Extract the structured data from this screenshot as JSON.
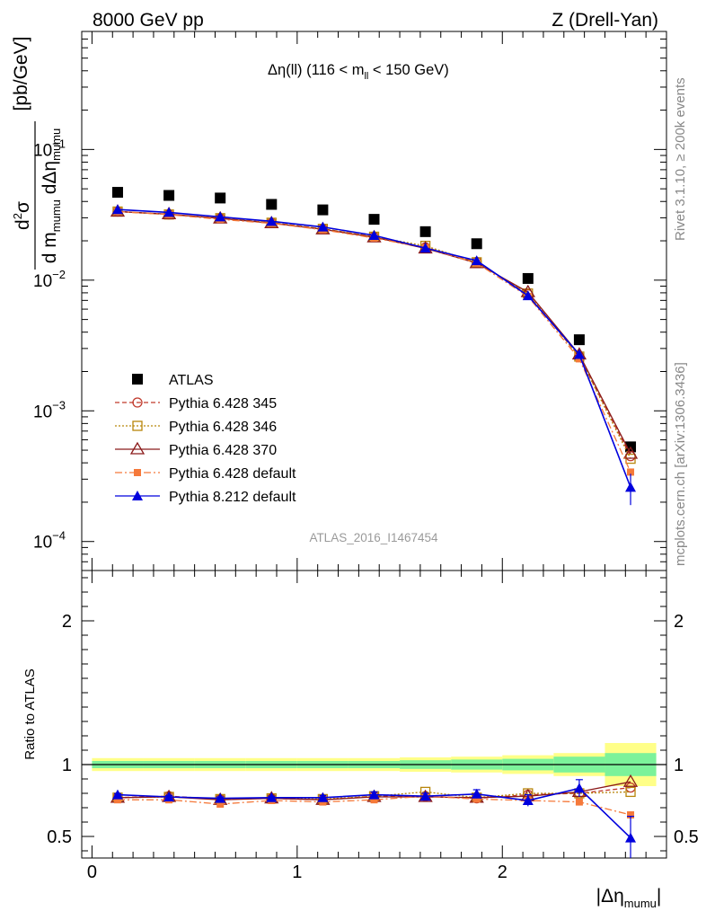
{
  "header": {
    "left": "8000 GeV pp",
    "right": "Z (Drell-Yan)"
  },
  "side_labels": {
    "rivet": "Rivet 3.1.10, ≥ 200k events",
    "mcplots": "mcplots.cern.ch [arXiv:1306.3436]"
  },
  "analysis_id": "ATLAS_2016_I1467454",
  "colors": {
    "atlas": "#000000",
    "p345": "#c0392b",
    "p346": "#b8860b",
    "p370": "#8b1a1a",
    "p6def": "#f5793a",
    "p8def": "#0000dd",
    "band_inner": "#7cf29a",
    "band_outer": "#ffff88"
  },
  "chart_data": [
    {
      "type": "scatter",
      "panel": "main",
      "title": "Δη(ll) (116 < m_ll < 150 GeV)",
      "title_parts": {
        "main": "Δη(ll) (116 < m",
        "sub": "ll",
        "tail": " < 150 GeV)"
      },
      "ylabel": "d²σ / d m_mumu dΔη_mumu [pb/GeV]",
      "ylabel_parts": {
        "num_d": "d",
        "num_sup": "2",
        "num_sigma": "σ",
        "den_a": "d m",
        "den_a_sub": "mumu",
        "den_b": " dΔη",
        "den_b_sub": "mumu",
        "unit": "[pb/GeV]"
      },
      "yscale": "log",
      "ylim": [
        6e-05,
        0.8
      ],
      "xlim": [
        -0.05,
        2.8
      ],
      "y_tick_labels": [
        {
          "value": 0.1,
          "base": "10",
          "exp": "−1"
        },
        {
          "value": 0.01,
          "base": "10",
          "exp": "−2"
        },
        {
          "value": 0.001,
          "base": "10",
          "exp": "−3"
        },
        {
          "value": 0.0001,
          "base": "10",
          "exp": "−4"
        }
      ],
      "x": [
        0.125,
        0.375,
        0.625,
        0.875,
        1.125,
        1.375,
        1.625,
        1.875,
        2.125,
        2.375,
        2.625
      ],
      "series": [
        {
          "name": "ATLAS",
          "key": "atlas",
          "marker": "square",
          "line": "none",
          "values": [
            0.047,
            0.0445,
            0.0425,
            0.038,
            0.0345,
            0.0292,
            0.0235,
            0.019,
            0.0103,
            0.0035,
            0.00053
          ]
        },
        {
          "name": "Pythia 6.428 345",
          "key": "p345",
          "marker": "circle-open",
          "line": "dashed",
          "values": [
            0.0335,
            0.0318,
            0.0298,
            0.0275,
            0.0247,
            0.0215,
            0.0178,
            0.0138,
            0.0078,
            0.0026,
            0.00045
          ]
        },
        {
          "name": "Pythia 6.428 346",
          "key": "p346",
          "marker": "square-open",
          "line": "dotted",
          "values": [
            0.0335,
            0.0318,
            0.0298,
            0.0275,
            0.0247,
            0.0215,
            0.0183,
            0.0137,
            0.0079,
            0.0026,
            0.00043
          ]
        },
        {
          "name": "Pythia 6.428 370",
          "key": "p370",
          "marker": "triangle-open",
          "line": "solid",
          "values": [
            0.0335,
            0.032,
            0.0297,
            0.0273,
            0.0245,
            0.0213,
            0.0175,
            0.0135,
            0.0081,
            0.0027,
            0.00047
          ]
        },
        {
          "name": "Pythia 6.428 default",
          "key": "p6def",
          "marker": "square-small",
          "line": "dashdot",
          "values": [
            0.0335,
            0.0317,
            0.0292,
            0.0272,
            0.0243,
            0.021,
            0.0177,
            0.0135,
            0.0075,
            0.0025,
            0.00034
          ]
        },
        {
          "name": "Pythia 8.212 default",
          "key": "p8def",
          "marker": "triangle",
          "line": "solid",
          "values": [
            0.0347,
            0.033,
            0.0305,
            0.0282,
            0.0255,
            0.022,
            0.0176,
            0.0141,
            0.0076,
            0.0027,
            0.00026
          ],
          "errors": [
            0,
            0,
            0,
            0,
            0,
            0,
            0,
            0,
            0,
            0.0002,
            7e-05
          ]
        }
      ]
    },
    {
      "type": "line",
      "panel": "ratio",
      "ylabel": "Ratio to ATLAS",
      "xlabel": "|Δη_mumu|",
      "xlabel_parts": {
        "main": "|Δη",
        "sub": "mumu",
        "tail": "|"
      },
      "ylim": [
        0.35,
        2.35
      ],
      "xlim": [
        -0.05,
        2.8
      ],
      "y_ticks": [
        0.5,
        1,
        2
      ],
      "y_tick_labels": [
        "0.5",
        "1",
        "2"
      ],
      "x_ticks": [
        0,
        1,
        2
      ],
      "x_tick_labels": [
        "0",
        "1",
        "2"
      ],
      "bins": [
        [
          0,
          0.25
        ],
        [
          0.25,
          0.5
        ],
        [
          0.5,
          0.75
        ],
        [
          0.75,
          1.0
        ],
        [
          1.0,
          1.25
        ],
        [
          1.25,
          1.5
        ],
        [
          1.5,
          1.75
        ],
        [
          1.75,
          2.0
        ],
        [
          2.0,
          2.25
        ],
        [
          2.25,
          2.5
        ],
        [
          2.5,
          2.75
        ]
      ],
      "band_inner": [
        0.025,
        0.025,
        0.025,
        0.025,
        0.025,
        0.025,
        0.03,
        0.035,
        0.04,
        0.055,
        0.08
      ],
      "band_outer": [
        0.045,
        0.045,
        0.045,
        0.045,
        0.045,
        0.045,
        0.05,
        0.055,
        0.065,
        0.08,
        0.15
      ],
      "x": [
        0.125,
        0.375,
        0.625,
        0.875,
        1.125,
        1.375,
        1.625,
        1.875,
        2.125,
        2.375,
        2.625
      ],
      "series": [
        {
          "name": "Pythia 6.428 345",
          "key": "p345",
          "values": [
            0.77,
            0.78,
            0.76,
            0.765,
            0.755,
            0.78,
            0.78,
            0.765,
            0.79,
            0.8,
            0.84
          ]
        },
        {
          "name": "Pythia 6.428 346",
          "key": "p346",
          "values": [
            0.77,
            0.775,
            0.76,
            0.765,
            0.76,
            0.78,
            0.81,
            0.77,
            0.8,
            0.8,
            0.81
          ]
        },
        {
          "name": "Pythia 6.428 370",
          "key": "p370",
          "values": [
            0.77,
            0.775,
            0.755,
            0.765,
            0.755,
            0.775,
            0.775,
            0.77,
            0.78,
            0.81,
            0.88
          ]
        },
        {
          "name": "Pythia 6.428 default",
          "key": "p6def",
          "values": [
            0.755,
            0.755,
            0.725,
            0.75,
            0.74,
            0.755,
            0.78,
            0.76,
            0.75,
            0.74,
            0.65
          ]
        },
        {
          "name": "Pythia 8.212 default",
          "key": "p8def",
          "values": [
            0.79,
            0.775,
            0.765,
            0.77,
            0.77,
            0.79,
            0.78,
            0.795,
            0.75,
            0.835,
            0.49
          ],
          "errors": [
            0.008,
            0.01,
            0.01,
            0.01,
            0.015,
            0.02,
            0.02,
            0.03,
            0.04,
            0.06,
            0.15
          ]
        }
      ]
    }
  ]
}
